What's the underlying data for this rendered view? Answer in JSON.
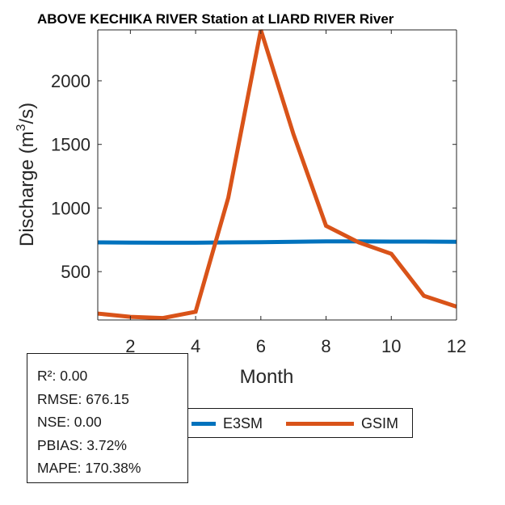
{
  "chart_data": {
    "type": "line",
    "title": "ABOVE KECHIKA RIVER  Station at  LIARD RIVER  River",
    "xlabel": "Month",
    "ylabel_base": "Discharge (m",
    "ylabel_sup": "3",
    "ylabel_end": "/s)",
    "x": [
      1,
      2,
      3,
      4,
      5,
      6,
      7,
      8,
      9,
      10,
      11,
      12
    ],
    "xlim": [
      1,
      12
    ],
    "ylim": [
      120,
      2400
    ],
    "xticks": [
      2,
      4,
      6,
      8,
      10,
      12
    ],
    "yticks": [
      500,
      1000,
      1500,
      2000
    ],
    "grid": false,
    "legend_position": "bottom",
    "series": [
      {
        "name": "E3SM",
        "color": "#0072BD",
        "values": [
          730,
          728,
          727,
          727,
          730,
          731,
          735,
          738,
          737,
          736,
          736,
          735
        ]
      },
      {
        "name": "GSIM",
        "color": "#D95319",
        "values": [
          170,
          145,
          135,
          185,
          1080,
          2400,
          1580,
          860,
          730,
          640,
          310,
          225
        ]
      }
    ]
  },
  "stats": {
    "r2": "R²: 0.00",
    "rmse": "RMSE: 676.15",
    "nse": "NSE: 0.00",
    "pbias": "PBIAS: 3.72%",
    "mape": "MAPE: 170.38%"
  },
  "legend": {
    "e3sm_label": "E3SM",
    "gsim_label": "GSIM",
    "e3sm_color": "#0072BD",
    "gsim_color": "#D95319"
  }
}
